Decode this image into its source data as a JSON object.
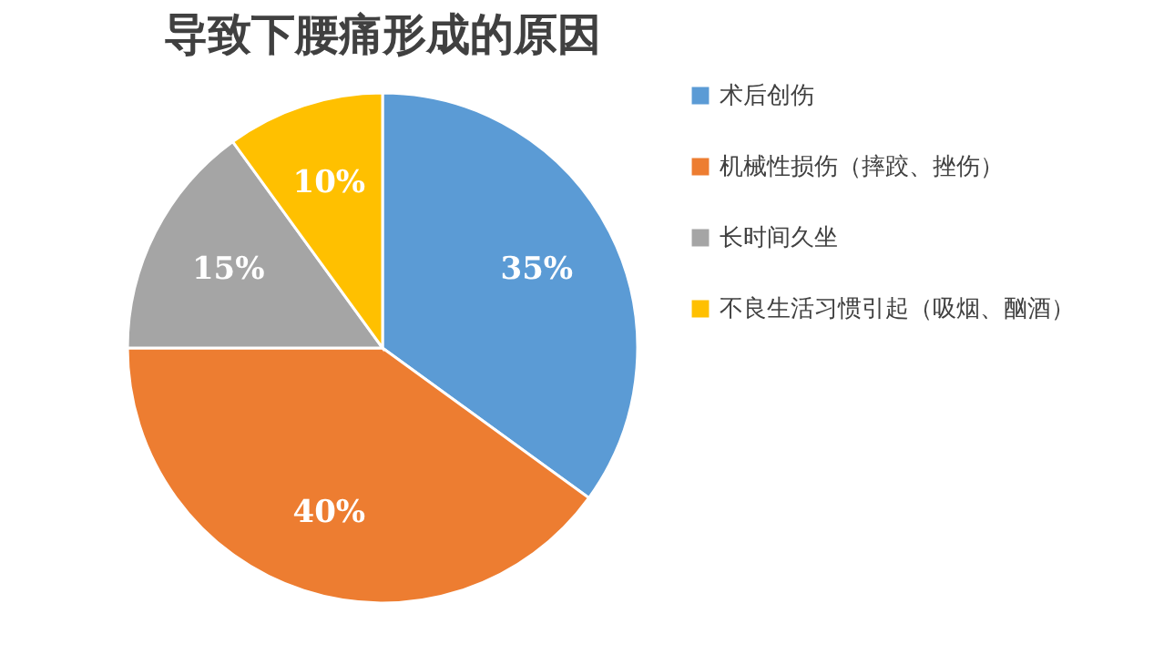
{
  "chart_data": {
    "type": "pie",
    "title": "导致下腰痛形成的原因",
    "categories": [
      "术后创伤",
      "机械性损伤（摔跤、挫伤）",
      "长时间久坐",
      "不良生活习惯引起（吸烟、酗酒）"
    ],
    "values": [
      35,
      40,
      15,
      10
    ],
    "colors": [
      "#5b9bd5",
      "#ed7d31",
      "#a5a5a5",
      "#ffc000"
    ],
    "value_labels": [
      "35%",
      "40%",
      "15%",
      "10%"
    ],
    "legend": "right"
  }
}
